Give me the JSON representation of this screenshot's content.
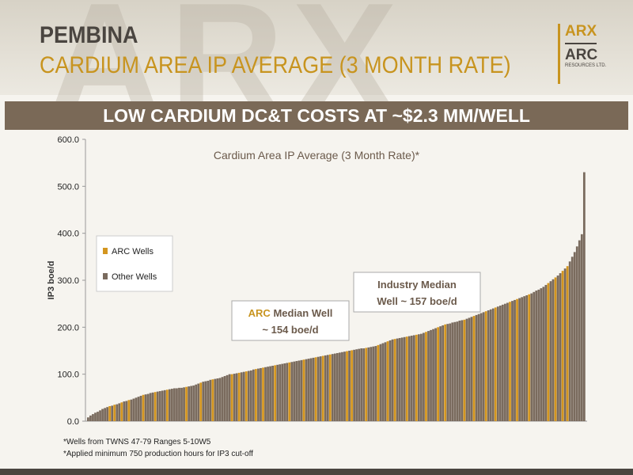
{
  "header": {
    "watermark": "ARX",
    "title": "PEMBINA",
    "subtitle": "CARDIUM AREA IP AVERAGE (3 MONTH RATE)"
  },
  "logo": {
    "top_text": "ARX",
    "bottom_text": "ARC",
    "small_text": "RESOURCES LTD."
  },
  "banner": "LOW CARDIUM DC&T COSTS AT ~$2.3 MM/WELL",
  "footnotes": [
    "*Wells from TWNS 47-79 Ranges 5-10W5",
    "*Applied minimum 750 production hours for IP3 cut-off"
  ],
  "colors": {
    "arc": "#d4961f",
    "other": "#7a6b5e",
    "accent": "#c8941f"
  },
  "chart_data": {
    "type": "bar",
    "title": "Cardium Area IP Average (3 Month Rate)*",
    "ylabel": "IP3 boe/d",
    "xlabel": "",
    "ylim": [
      0,
      600
    ],
    "yticks": [
      "0.0",
      "100.0",
      "200.0",
      "300.0",
      "400.0",
      "500.0",
      "600.0"
    ],
    "grid": false,
    "legend": {
      "placement": "left",
      "items": [
        {
          "label": "ARC Wells",
          "series": "arc"
        },
        {
          "label": "Other Wells",
          "series": "other"
        }
      ]
    },
    "annotations": [
      {
        "prefix": "ARC",
        "line1": " Median Well",
        "line2": "~ 154 boe/d"
      },
      {
        "line1": "Industry Median",
        "line2": "Well ~ 157 boe/d"
      }
    ],
    "series_order": "sorted ascending by IP3",
    "values": [
      8,
      12,
      15,
      18,
      20,
      23,
      26,
      28,
      30,
      32,
      33,
      35,
      36,
      38,
      40,
      42,
      43,
      45,
      46,
      48,
      50,
      52,
      54,
      56,
      57,
      58,
      60,
      61,
      62,
      63,
      64,
      65,
      66,
      67,
      68,
      69,
      70,
      70,
      71,
      71,
      72,
      73,
      74,
      75,
      76,
      78,
      80,
      82,
      84,
      85,
      86,
      88,
      89,
      90,
      91,
      92,
      94,
      96,
      98,
      100,
      100,
      101,
      102,
      103,
      104,
      105,
      106,
      107,
      108,
      110,
      111,
      112,
      113,
      114,
      115,
      116,
      117,
      118,
      119,
      120,
      121,
      122,
      123,
      124,
      125,
      126,
      127,
      128,
      129,
      130,
      131,
      132,
      133,
      134,
      135,
      136,
      137,
      138,
      139,
      140,
      141,
      142,
      143,
      144,
      145,
      146,
      147,
      148,
      149,
      150,
      151,
      152,
      153,
      154,
      155,
      155,
      156,
      157,
      158,
      159,
      160,
      162,
      164,
      166,
      168,
      170,
      172,
      174,
      175,
      176,
      177,
      178,
      179,
      180,
      181,
      182,
      183,
      184,
      185,
      186,
      188,
      190,
      192,
      194,
      196,
      198,
      200,
      202,
      204,
      206,
      207,
      208,
      210,
      211,
      212,
      214,
      215,
      216,
      218,
      220,
      222,
      224,
      226,
      228,
      230,
      232,
      234,
      236,
      238,
      240,
      242,
      244,
      246,
      248,
      250,
      252,
      254,
      256,
      258,
      260,
      262,
      264,
      266,
      268,
      270,
      272,
      275,
      278,
      280,
      283,
      286,
      290,
      294,
      298,
      302,
      306,
      310,
      315,
      320,
      325,
      330,
      340,
      350,
      360,
      372,
      385,
      398,
      530
    ],
    "arc_wells_index": [
      9,
      11,
      14,
      17,
      23,
      28,
      33,
      41,
      47,
      52,
      60,
      63,
      66,
      70,
      73,
      78,
      84,
      90,
      95,
      98,
      101,
      108,
      110,
      116,
      121,
      125,
      128,
      133,
      137,
      141,
      146,
      149,
      157,
      161,
      166,
      170,
      176,
      179,
      184,
      192,
      195,
      198,
      200
    ]
  }
}
